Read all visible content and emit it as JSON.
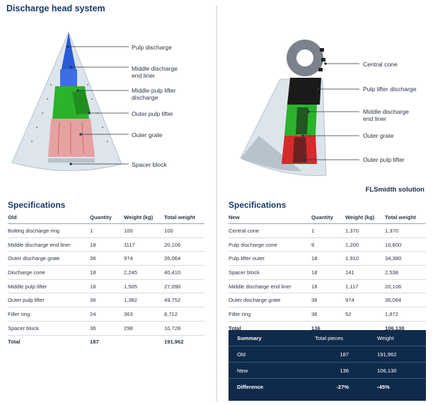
{
  "page": {
    "title": "Discharge head system",
    "brand": "FLSmidth solution"
  },
  "left_figure": {
    "callouts": [
      "Pulp discharge",
      "Middle discharge\nend liner",
      "Middle pulp lifter\ndischarge",
      "Outer pulp lifter",
      "Outer grate",
      "Spacer block"
    ]
  },
  "right_figure": {
    "callouts": [
      "Central cone",
      "Pulp lifter discharge",
      "Middle discharge\nend liner",
      "Outer grate",
      "Outer pulp lifter"
    ]
  },
  "colors": {
    "accent": "#163a6b",
    "summary_bg": "#102a4c",
    "green": "#2bb32b",
    "blue": "#2a5bd7",
    "red": "#d42b2b",
    "pink": "#e6a2a2",
    "panel": "#d9e2ea"
  },
  "old_spec": {
    "title": "Specifications",
    "headers": [
      "Old",
      "Quantity",
      "Weight (kg)",
      "Total weight"
    ],
    "rows": [
      [
        "Bolting discharge ring",
        "1",
        "100",
        "100"
      ],
      [
        "Middle discharge end liner",
        "18",
        "1117",
        "20,106"
      ],
      [
        "Outer discharge grate",
        "36",
        "974",
        "35,064"
      ],
      [
        "Discharge cone",
        "18",
        "2,245",
        "40,410"
      ],
      [
        "Middle pulp lifter",
        "18",
        "1,505",
        "27,090"
      ],
      [
        "Outer pulp lifter",
        "36",
        "1,382",
        "49,752"
      ],
      [
        "Filler ring",
        "24",
        "363",
        "8,712"
      ],
      [
        "Spacer block",
        "36",
        "298",
        "10,728"
      ]
    ],
    "total": [
      "Total",
      "187",
      "",
      "191,962"
    ]
  },
  "new_spec": {
    "title": "Specifications",
    "headers": [
      "New",
      "Quantity",
      "Weight (kg)",
      "Total weight"
    ],
    "rows": [
      [
        "Central cone",
        "1",
        "1,370",
        "1,370"
      ],
      [
        "Pulp discharge cone",
        "9",
        "1,200",
        "10,800"
      ],
      [
        "Pulp lifter outer",
        "18",
        "1,910",
        "34,380"
      ],
      [
        "Spacer block",
        "18",
        "141",
        "2,538"
      ],
      [
        "Middle discharge end liner",
        "18",
        "1,117",
        "20,106"
      ],
      [
        "Outer discharge grate",
        "36",
        "974",
        "35,064"
      ],
      [
        "Filler ring",
        "36",
        "52",
        "1,872"
      ]
    ],
    "total": [
      "Total",
      "136",
      "",
      "106,130"
    ]
  },
  "summary": {
    "headers": [
      "Summary",
      "Total pieces",
      "Weight"
    ],
    "rows": [
      [
        "Old",
        "187",
        "191,962"
      ],
      [
        "New",
        "136",
        "106,130"
      ]
    ],
    "difference": [
      "Difference",
      "-27%",
      "-45%"
    ]
  }
}
